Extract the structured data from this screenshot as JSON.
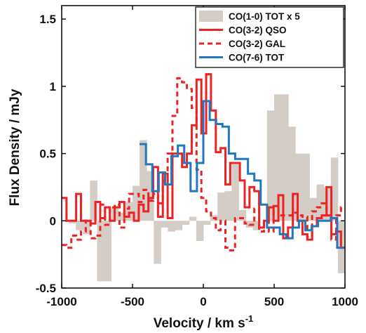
{
  "chart_data": {
    "type": "line",
    "xlabel": "Velocity / km s",
    "xlabel_sup": "-1",
    "ylabel": "Flux Density / mJy",
    "xlim": [
      -1000,
      1000
    ],
    "ylim": [
      -0.5,
      1.6
    ],
    "xticks": [
      -1000,
      -500,
      0,
      500,
      1000
    ],
    "xtick_labels": [
      "-1000",
      "-500",
      "0",
      "500",
      "1000"
    ],
    "yticks": [
      -0.5,
      0,
      0.5,
      1,
      1.5
    ],
    "ytick_labels": [
      "-0.5",
      "0",
      "0.5",
      "1",
      "1.5"
    ],
    "grid": false,
    "legend_position": "top-right",
    "colors": {
      "co10": "#d3cdc6",
      "qso": "#ee2222",
      "gal": "#ee2222",
      "tot76": "#1f78c0"
    },
    "series": [
      {
        "name": "CO(1-0) TOT x 5",
        "style": "bars",
        "x": [
          -1000,
          -950,
          -900,
          -850,
          -800,
          -750,
          -700,
          -650,
          -600,
          -550,
          -500,
          -450,
          -400,
          -350,
          -300,
          -250,
          -200,
          -150,
          -100,
          -50,
          0,
          50,
          100,
          150,
          200,
          250,
          300,
          350,
          400,
          450,
          500,
          550,
          600,
          650,
          700,
          750,
          800,
          850,
          900,
          950
        ],
        "values": [
          0,
          -0.02,
          -0.07,
          -0.1,
          0.3,
          -0.45,
          -0.45,
          0.1,
          0.06,
          0.14,
          0.26,
          0.6,
          0.37,
          -0.32,
          -0.05,
          -0.08,
          -0.07,
          -0.03,
          0.03,
          -0.15,
          -0.03,
          0.04,
          0.21,
          0.22,
          0.42,
          0.08,
          -0.05,
          -0.07,
          0,
          0.82,
          0.94,
          0.94,
          0.7,
          0.5,
          0.5,
          0.17,
          0.27,
          0.25,
          0.47,
          -0.39
        ]
      },
      {
        "name": "CO(3-2) QSO",
        "style": "step-solid",
        "x": [
          -1000,
          -966,
          -932,
          -898,
          -864,
          -830,
          -796,
          -762,
          -728,
          -694,
          -660,
          -626,
          -592,
          -558,
          -524,
          -490,
          -456,
          -422,
          -388,
          -354,
          -320,
          -286,
          -252,
          -218,
          -184,
          -150,
          -116,
          -82,
          -48,
          -14,
          20,
          54,
          88,
          122,
          156,
          190,
          224,
          258,
          292,
          326,
          360,
          394,
          428,
          462,
          496,
          530,
          564,
          598,
          632,
          666,
          700,
          734,
          768,
          802,
          836,
          870,
          904,
          938,
          972
        ],
        "values": [
          0.17,
          0.0,
          0.0,
          0.2,
          0.0,
          0.0,
          -0.02,
          0.14,
          0.02,
          0.1,
          0.0,
          0.1,
          0.14,
          0.03,
          0.06,
          0.0,
          0.12,
          0.07,
          0.17,
          0.4,
          0.03,
          0.35,
          0.02,
          0.5,
          0.5,
          0.4,
          0.5,
          0.71,
          1.05,
          0.65,
          1.09,
          0.82,
          0.51,
          0.54,
          0.27,
          0.43,
          0.43,
          0.3,
          0.1,
          0.25,
          0.22,
          -0.05,
          0.0,
          0.1,
          0.0,
          0.19,
          -0.13,
          -0.05,
          0.2,
          0.0,
          -0.1,
          -0.14,
          -0.04,
          0.02,
          0.04,
          0.25,
          -0.1,
          -0.08,
          -0.2
        ]
      },
      {
        "name": "CO(3-2) GAL",
        "style": "step-dashed",
        "x": [
          -1000,
          -966,
          -932,
          -898,
          -864,
          -830,
          -796,
          -762,
          -728,
          -694,
          -660,
          -626,
          -592,
          -558,
          -524,
          -490,
          -456,
          -422,
          -388,
          -354,
          -320,
          -286,
          -252,
          -218,
          -184,
          -150,
          -116,
          -82,
          -48,
          -14,
          20,
          54,
          88,
          122,
          156,
          190,
          224,
          258,
          292,
          326,
          360,
          394,
          428,
          462,
          496,
          530,
          564,
          598,
          632,
          666,
          700,
          734,
          768,
          802,
          836,
          870,
          904,
          938,
          972
        ],
        "values": [
          -0.18,
          -0.2,
          -0.11,
          -0.14,
          -0.08,
          0.0,
          -0.13,
          -0.11,
          0.12,
          -0.03,
          0.1,
          0.12,
          -0.05,
          0.09,
          0.2,
          0.2,
          0.14,
          0.23,
          0.15,
          0.2,
          0.13,
          0.3,
          0.5,
          0.78,
          1.06,
          1.03,
          0.98,
          0.84,
          0.38,
          0.17,
          0.07,
          0.02,
          -0.07,
          0.0,
          -0.2,
          -0.22,
          0.02,
          0.02,
          -0.02,
          -0.03,
          0.09,
          -0.08,
          0.0,
          -0.08,
          0.11,
          0.04,
          0.04,
          0.04,
          0.06,
          0.04,
          0.03,
          -0.12,
          0.07,
          0.1,
          0.13,
          0.04,
          -0.14,
          0.04,
          0.1
        ]
      },
      {
        "name": "CO(7-6) TOT",
        "style": "step-solid",
        "x": [
          -450,
          -405,
          -360,
          -315,
          -270,
          -225,
          -180,
          -135,
          -90,
          -45,
          0,
          45,
          90,
          135,
          180,
          225,
          270,
          315,
          360,
          405,
          450,
          495,
          540,
          585,
          630,
          675,
          720,
          765,
          810,
          855,
          900,
          945
        ],
        "values": [
          0.57,
          0.42,
          0.22,
          0.36,
          0.27,
          0.48,
          0.56,
          0.43,
          0.22,
          0.43,
          0.89,
          0.75,
          0.72,
          0.7,
          0.5,
          0.46,
          0.46,
          0.35,
          0.3,
          0.12,
          -0.05,
          -0.05,
          -0.1,
          -0.13,
          -0.05,
          0.0,
          -0.07,
          -0.04,
          0.0,
          0.0,
          0.02,
          -0.2
        ]
      }
    ]
  }
}
